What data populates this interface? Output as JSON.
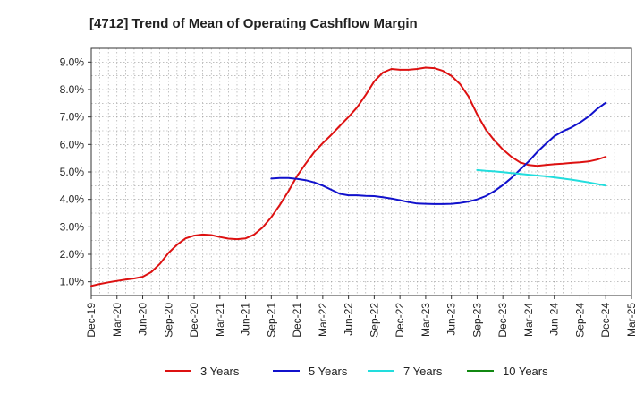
{
  "chart_data": {
    "type": "line",
    "title": "[4712]  Trend of Mean of Operating Cashflow Margin",
    "xlabel": "",
    "ylabel": "",
    "x_tick_labels": [
      "Dec-19",
      "Mar-20",
      "Jun-20",
      "Sep-20",
      "Dec-20",
      "Mar-21",
      "Jun-21",
      "Sep-21",
      "Dec-21",
      "Mar-22",
      "Jun-22",
      "Sep-22",
      "Dec-22",
      "Mar-23",
      "Jun-23",
      "Sep-23",
      "Dec-23",
      "Mar-24",
      "Jun-24",
      "Sep-24",
      "Dec-24",
      "Mar-25"
    ],
    "y_tick_labels": [
      "1.0%",
      "2.0%",
      "3.0%",
      "4.0%",
      "5.0%",
      "6.0%",
      "7.0%",
      "8.0%",
      "9.0%"
    ],
    "y_ticks": [
      1,
      2,
      3,
      4,
      5,
      6,
      7,
      8,
      9
    ],
    "ylim": [
      0.5,
      9.5
    ],
    "grid": true,
    "legend_position": "bottom",
    "series": [
      {
        "name": "3 Years",
        "color": "#dd1111",
        "x": [
          "Dec-19",
          "Jan-20",
          "Feb-20",
          "Mar-20",
          "Apr-20",
          "May-20",
          "Jun-20",
          "Jul-20",
          "Aug-20",
          "Sep-20",
          "Oct-20",
          "Nov-20",
          "Dec-20",
          "Jan-21",
          "Feb-21",
          "Mar-21",
          "Apr-21",
          "May-21",
          "Jun-21",
          "Jul-21",
          "Aug-21",
          "Sep-21",
          "Oct-21",
          "Nov-21",
          "Dec-21",
          "Jan-22",
          "Feb-22",
          "Mar-22",
          "Apr-22",
          "May-22",
          "Jun-22",
          "Jul-22",
          "Aug-22",
          "Sep-22",
          "Oct-22",
          "Nov-22",
          "Dec-22",
          "Jan-23",
          "Feb-23",
          "Mar-23",
          "Apr-23",
          "May-23",
          "Jun-23",
          "Jul-23",
          "Aug-23",
          "Sep-23",
          "Oct-23",
          "Nov-23",
          "Dec-23",
          "Jan-24",
          "Feb-24",
          "Mar-24",
          "Apr-24",
          "May-24",
          "Jun-24",
          "Jul-24",
          "Aug-24",
          "Sep-24",
          "Oct-24",
          "Nov-24",
          "Dec-24"
        ],
        "values": [
          0.85,
          0.92,
          0.98,
          1.03,
          1.08,
          1.12,
          1.18,
          1.35,
          1.65,
          2.05,
          2.35,
          2.58,
          2.68,
          2.72,
          2.7,
          2.63,
          2.57,
          2.55,
          2.58,
          2.72,
          2.98,
          3.35,
          3.8,
          4.3,
          4.85,
          5.3,
          5.72,
          6.05,
          6.35,
          6.68,
          7.0,
          7.35,
          7.8,
          8.3,
          8.62,
          8.75,
          8.72,
          8.72,
          8.75,
          8.8,
          8.78,
          8.68,
          8.5,
          8.2,
          7.75,
          7.1,
          6.55,
          6.15,
          5.82,
          5.55,
          5.35,
          5.25,
          5.22,
          5.25,
          5.28,
          5.3,
          5.33,
          5.35,
          5.38,
          5.45,
          5.55
        ]
      },
      {
        "name": "5 Years",
        "color": "#1111cc",
        "x": [
          "Sep-21",
          "Oct-21",
          "Nov-21",
          "Dec-21",
          "Jan-22",
          "Feb-22",
          "Mar-22",
          "Apr-22",
          "May-22",
          "Jun-22",
          "Jul-22",
          "Aug-22",
          "Sep-22",
          "Oct-22",
          "Nov-22",
          "Dec-22",
          "Jan-23",
          "Feb-23",
          "Mar-23",
          "Apr-23",
          "May-23",
          "Jun-23",
          "Jul-23",
          "Aug-23",
          "Sep-23",
          "Oct-23",
          "Nov-23",
          "Dec-23",
          "Jan-24",
          "Feb-24",
          "Mar-24",
          "Apr-24",
          "May-24",
          "Jun-24",
          "Jul-24",
          "Aug-24",
          "Sep-24",
          "Oct-24",
          "Nov-24",
          "Dec-24"
        ],
        "values": [
          4.76,
          4.78,
          4.78,
          4.75,
          4.7,
          4.62,
          4.5,
          4.35,
          4.2,
          4.15,
          4.15,
          4.13,
          4.12,
          4.08,
          4.03,
          3.97,
          3.9,
          3.85,
          3.84,
          3.83,
          3.83,
          3.84,
          3.87,
          3.92,
          4.0,
          4.12,
          4.3,
          4.52,
          4.78,
          5.08,
          5.38,
          5.72,
          6.02,
          6.3,
          6.48,
          6.62,
          6.8,
          7.02,
          7.3,
          7.52
        ]
      },
      {
        "name": "7 Years",
        "color": "#22dddd",
        "x": [
          "Sep-23",
          "Oct-23",
          "Nov-23",
          "Dec-23",
          "Jan-24",
          "Feb-24",
          "Mar-24",
          "Apr-24",
          "May-24",
          "Jun-24",
          "Jul-24",
          "Aug-24",
          "Sep-24",
          "Oct-24",
          "Nov-24",
          "Dec-24"
        ],
        "values": [
          5.07,
          5.04,
          5.02,
          4.99,
          4.96,
          4.93,
          4.9,
          4.87,
          4.84,
          4.8,
          4.76,
          4.72,
          4.67,
          4.62,
          4.56,
          4.5
        ]
      },
      {
        "name": "10 Years",
        "color": "#118811",
        "x": [],
        "values": []
      }
    ]
  }
}
